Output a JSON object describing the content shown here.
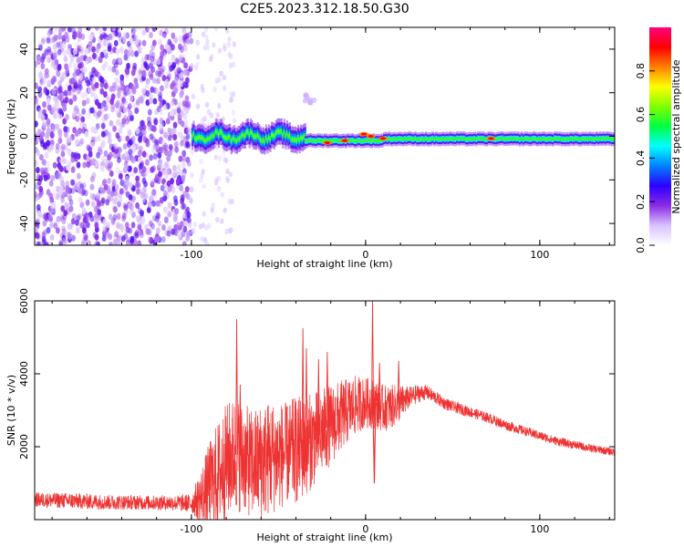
{
  "chart_data": [
    {
      "type": "heatmap",
      "title": "C2E5.2023.312.18.50.G30",
      "xlabel": "Height of straight line (km)",
      "ylabel": "Frequency (Hz)",
      "xlim": [
        -190,
        143
      ],
      "ylim": [
        -50,
        50
      ],
      "xticks": [
        -100,
        0,
        100
      ],
      "yticks": [
        -40,
        -20,
        0,
        20,
        40
      ],
      "colorbar": {
        "label": "Normalized spectral amplitude",
        "range": [
          0,
          1
        ],
        "ticks": [
          "0.0",
          "0.2",
          "0.4",
          "0.6",
          "0.8"
        ],
        "colormap": [
          "#ffffff",
          "#d9c2ff",
          "#8a2be2",
          "#2d00ff",
          "#0080ff",
          "#00ffff",
          "#00ff40",
          "#80ff00",
          "#ffff00",
          "#ff8000",
          "#ff0000",
          "#ff0080"
        ]
      },
      "regions": [
        {
          "name": "noise",
          "x_from": -190,
          "x_to": -100,
          "freq_band": [
            -50,
            50
          ],
          "level": 0.1
        },
        {
          "name": "turbulent-signal",
          "x_from": -100,
          "x_to": -35,
          "freq_band": [
            -5,
            6
          ],
          "level": 0.45
        },
        {
          "name": "narrow-signal",
          "x_from": -35,
          "x_to": 143,
          "freq_band": [
            -2,
            2
          ],
          "level": 0.55
        }
      ],
      "hotspots": [
        {
          "x": -22,
          "y": -3
        },
        {
          "x": -12,
          "y": -2
        },
        {
          "x": -1,
          "y": 1
        },
        {
          "x": 3,
          "y": 0
        },
        {
          "x": 10,
          "y": -1
        },
        {
          "x": 72,
          "y": -1
        }
      ],
      "colors": {
        "frame": "#000000"
      }
    },
    {
      "type": "line",
      "xlabel": "Height of straight line (km)",
      "ylabel": "SNR (10 * v/v)",
      "xlim": [
        -190,
        143
      ],
      "ylim": [
        0,
        6000
      ],
      "xticks": [
        -100,
        0,
        100
      ],
      "yticks": [
        2000,
        4000,
        6000
      ],
      "series": [
        {
          "color": "#ee3333",
          "x": [
            -190,
            -170,
            -150,
            -130,
            -110,
            -100,
            -95,
            -90,
            -85,
            -80,
            -75,
            -70,
            -65,
            -60,
            -55,
            -50,
            -45,
            -40,
            -35,
            -30,
            -25,
            -20,
            -15,
            -10,
            -5,
            0,
            5,
            10,
            15,
            20,
            25,
            30,
            35,
            40,
            45,
            50,
            60,
            70,
            80,
            90,
            100,
            110,
            120,
            130,
            143
          ],
          "y": [
            550,
            520,
            480,
            470,
            460,
            450,
            600,
            900,
            1200,
            1600,
            1800,
            1700,
            1500,
            1600,
            1700,
            1750,
            1800,
            1900,
            2000,
            2200,
            2400,
            2600,
            2800,
            3000,
            3150,
            3200,
            3200,
            3050,
            3100,
            3200,
            3350,
            3450,
            3500,
            3350,
            3200,
            3100,
            2950,
            2800,
            2600,
            2450,
            2300,
            2150,
            2050,
            1950,
            1850
          ],
          "noise": [
            200,
            220,
            210,
            200,
            210,
            260,
            700,
            1200,
            1500,
            1600,
            1600,
            1500,
            1500,
            1600,
            1600,
            1500,
            1400,
            1500,
            1400,
            1300,
            1200,
            1100,
            1000,
            900,
            800,
            700,
            700,
            650,
            600,
            500,
            300,
            250,
            200,
            180,
            170,
            160,
            150,
            140,
            140,
            130,
            130,
            120,
            120,
            110,
            110
          ]
        }
      ],
      "spikes": [
        {
          "x": -74,
          "y": 5500
        },
        {
          "x": -72,
          "y": 3700
        },
        {
          "x": -36,
          "y": 5250
        },
        {
          "x": -34,
          "y": 4700
        },
        {
          "x": -27,
          "y": 4400
        },
        {
          "x": -22,
          "y": 4600
        },
        {
          "x": 4,
          "y": 6000
        },
        {
          "x": 8,
          "y": 4300
        },
        {
          "x": 19,
          "y": 4350
        }
      ],
      "dips": [
        {
          "x": 5,
          "y": 1000
        }
      ],
      "colors": {
        "frame": "#000000"
      }
    }
  ]
}
